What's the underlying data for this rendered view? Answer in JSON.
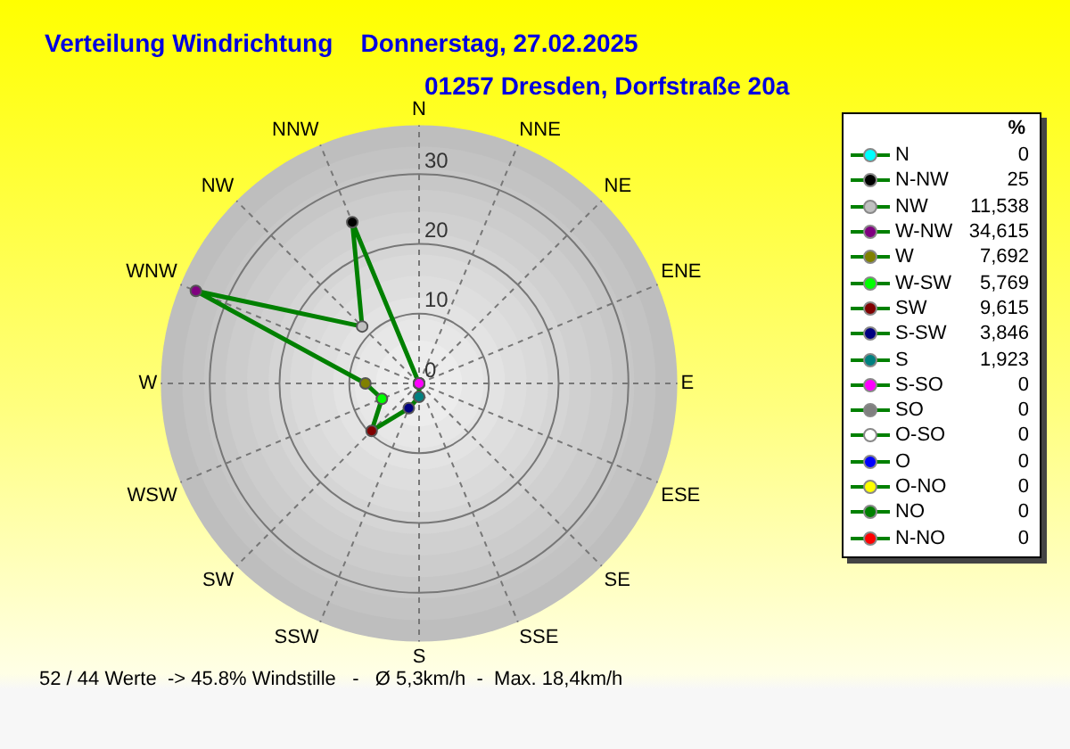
{
  "chart_data": [
    {
      "type": "radar",
      "title": "Verteilung Windrichtung    Donnerstag, 27.02.2025",
      "subtitle": "01257 Dresden, Dorfstraße 20a",
      "categories": [
        "N",
        "NNE",
        "NE",
        "ENE",
        "E",
        "ESE",
        "SE",
        "SSE",
        "S",
        "SSW",
        "SW",
        "WSW",
        "W",
        "WNW",
        "NW",
        "NNW"
      ],
      "series": [
        {
          "color": "#008000",
          "values": [
            0,
            0,
            0,
            0,
            0,
            0,
            0,
            0,
            1.923,
            3.846,
            9.615,
            5.769,
            7.692,
            34.615,
            11.538,
            25
          ],
          "colors": [
            "#00ffff",
            "#ff0000",
            "#008000",
            "#ffff00",
            "#0000ff",
            "#ffffff",
            "#808080",
            "#ff00ff",
            "#008080",
            "#000080",
            "#800000",
            "#00ff00",
            "#808000",
            "#800080",
            "#c0c0c0",
            "#000000"
          ]
        }
      ],
      "ylim": [
        0,
        37
      ],
      "yticks": [
        0,
        10,
        20,
        30
      ],
      "grid": true,
      "marker": "circle",
      "annotations": [
        "52 / 44 Werte  -> 45.8% Windstille   -   Ø 5,3km/h  -  Max. 18,4km/h"
      ]
    },
    {
      "type": "other",
      "legend_title": "%",
      "categories": [
        "N",
        "N-NW",
        "NW",
        "W-NW",
        "W",
        "W-SW",
        "SW",
        "S-SW",
        "S",
        "S-SO",
        "SO",
        "O-SO",
        "O",
        "O-NO",
        "NO",
        "N-NO"
      ],
      "value_labels": [
        "0",
        "25",
        "11,538",
        "34,615",
        "7,692",
        "5,769",
        "9,615",
        "3,846",
        "1,923",
        "0",
        "0",
        "0",
        "0",
        "0",
        "0",
        "0"
      ],
      "colors": [
        "#00ffff",
        "#000000",
        "#c0c0c0",
        "#800080",
        "#808000",
        "#00ff00",
        "#800000",
        "#000080",
        "#008080",
        "#ff00ff",
        "#808080",
        "#ffffff",
        "#0000ff",
        "#ffff00",
        "#008000",
        "#ff0000"
      ]
    }
  ]
}
